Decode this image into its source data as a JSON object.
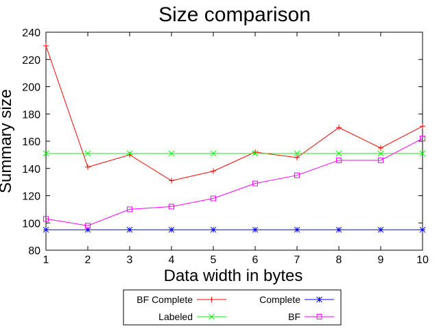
{
  "chart_data": {
    "type": "line",
    "title": "Size comparison",
    "xlabel": "Data width in bytes",
    "ylabel": "Summary size",
    "xlim": [
      1,
      10
    ],
    "ylim": [
      80,
      240
    ],
    "x": [
      1,
      2,
      3,
      4,
      5,
      6,
      7,
      8,
      9,
      10
    ],
    "xticks": [
      1,
      2,
      3,
      4,
      5,
      6,
      7,
      8,
      9,
      10
    ],
    "yticks": [
      80,
      100,
      120,
      140,
      160,
      180,
      200,
      220,
      240
    ],
    "grid": false,
    "legend_position": "bottom",
    "series": [
      {
        "name": "BF Complete",
        "color": "#ff0000",
        "marker": "plus",
        "values": [
          230,
          141,
          150,
          131,
          138,
          152,
          148,
          170,
          155,
          171
        ]
      },
      {
        "name": "Complete",
        "color": "#0000ff",
        "marker": "star",
        "values": [
          95,
          95,
          95,
          95,
          95,
          95,
          95,
          95,
          95,
          95
        ]
      },
      {
        "name": "Labeled",
        "color": "#00ff00",
        "marker": "cross",
        "values": [
          151,
          151,
          151,
          151,
          151,
          151,
          151,
          151,
          151,
          151
        ]
      },
      {
        "name": "BF",
        "color": "#ff00ff",
        "marker": "square",
        "values": [
          103,
          98,
          110,
          112,
          118,
          129,
          135,
          146,
          146,
          162
        ]
      }
    ]
  }
}
